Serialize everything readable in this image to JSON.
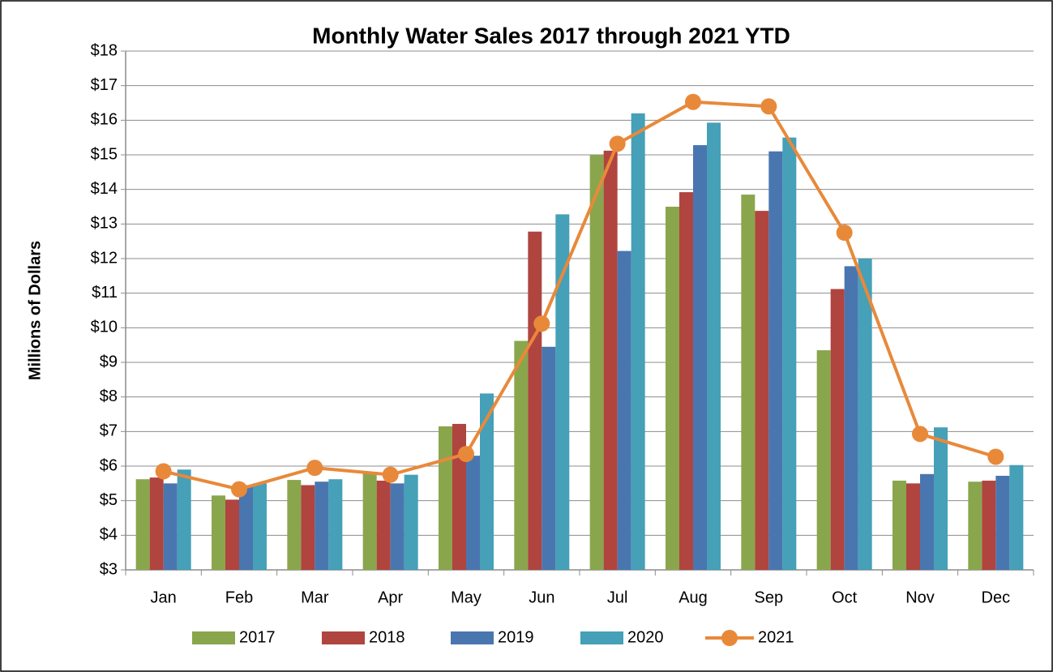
{
  "chart_data": {
    "type": "bar",
    "title": "Monthly Water Sales 2017 through 2021 YTD",
    "y_label": "Millions of Dollars",
    "categories": [
      "Jan",
      "Feb",
      "Mar",
      "Apr",
      "May",
      "Jun",
      "Jul",
      "Aug",
      "Sep",
      "Oct",
      "Nov",
      "Dec"
    ],
    "series": [
      {
        "name": "2017",
        "color": "#8aa64d",
        "type": "bar",
        "values": [
          5.62,
          5.15,
          5.6,
          5.8,
          7.15,
          9.62,
          15.0,
          13.5,
          13.85,
          9.35,
          5.58,
          5.55
        ]
      },
      {
        "name": "2018",
        "color": "#b0443f",
        "type": "bar",
        "values": [
          5.67,
          5.03,
          5.45,
          5.58,
          7.22,
          12.78,
          15.12,
          13.92,
          13.38,
          11.12,
          5.5,
          5.58
        ]
      },
      {
        "name": "2019",
        "color": "#4a76b0",
        "type": "bar",
        "values": [
          5.5,
          5.45,
          5.55,
          5.5,
          6.3,
          9.45,
          12.22,
          15.28,
          15.1,
          11.78,
          5.77,
          5.72
        ]
      },
      {
        "name": "2020",
        "color": "#45a0b8",
        "type": "bar",
        "values": [
          5.9,
          5.5,
          5.62,
          5.75,
          8.1,
          13.28,
          16.2,
          15.93,
          15.5,
          12.0,
          7.12,
          6.03
        ]
      },
      {
        "name": "2021",
        "color": "#e8893a",
        "type": "line",
        "values": [
          5.85,
          5.33,
          5.95,
          5.75,
          6.35,
          10.12,
          15.32,
          16.53,
          16.4,
          12.75,
          6.93,
          6.27
        ]
      }
    ],
    "ylim": [
      3,
      18
    ],
    "yticks": [
      {
        "value": 3,
        "label": "$3"
      },
      {
        "value": 4,
        "label": "$4"
      },
      {
        "value": 5,
        "label": "$5"
      },
      {
        "value": 6,
        "label": "$6"
      },
      {
        "value": 7,
        "label": "$7"
      },
      {
        "value": 8,
        "label": "$8"
      },
      {
        "value": 9,
        "label": "$9"
      },
      {
        "value": 10,
        "label": "$10"
      },
      {
        "value": 11,
        "label": "$11"
      },
      {
        "value": 12,
        "label": "$12"
      },
      {
        "value": 13,
        "label": "$13"
      },
      {
        "value": 14,
        "label": "$14"
      },
      {
        "value": 15,
        "label": "$15"
      },
      {
        "value": 16,
        "label": "$16"
      },
      {
        "value": 17,
        "label": "$17"
      },
      {
        "value": 18,
        "label": "$18"
      }
    ],
    "grid": true,
    "legend": "bottom"
  }
}
